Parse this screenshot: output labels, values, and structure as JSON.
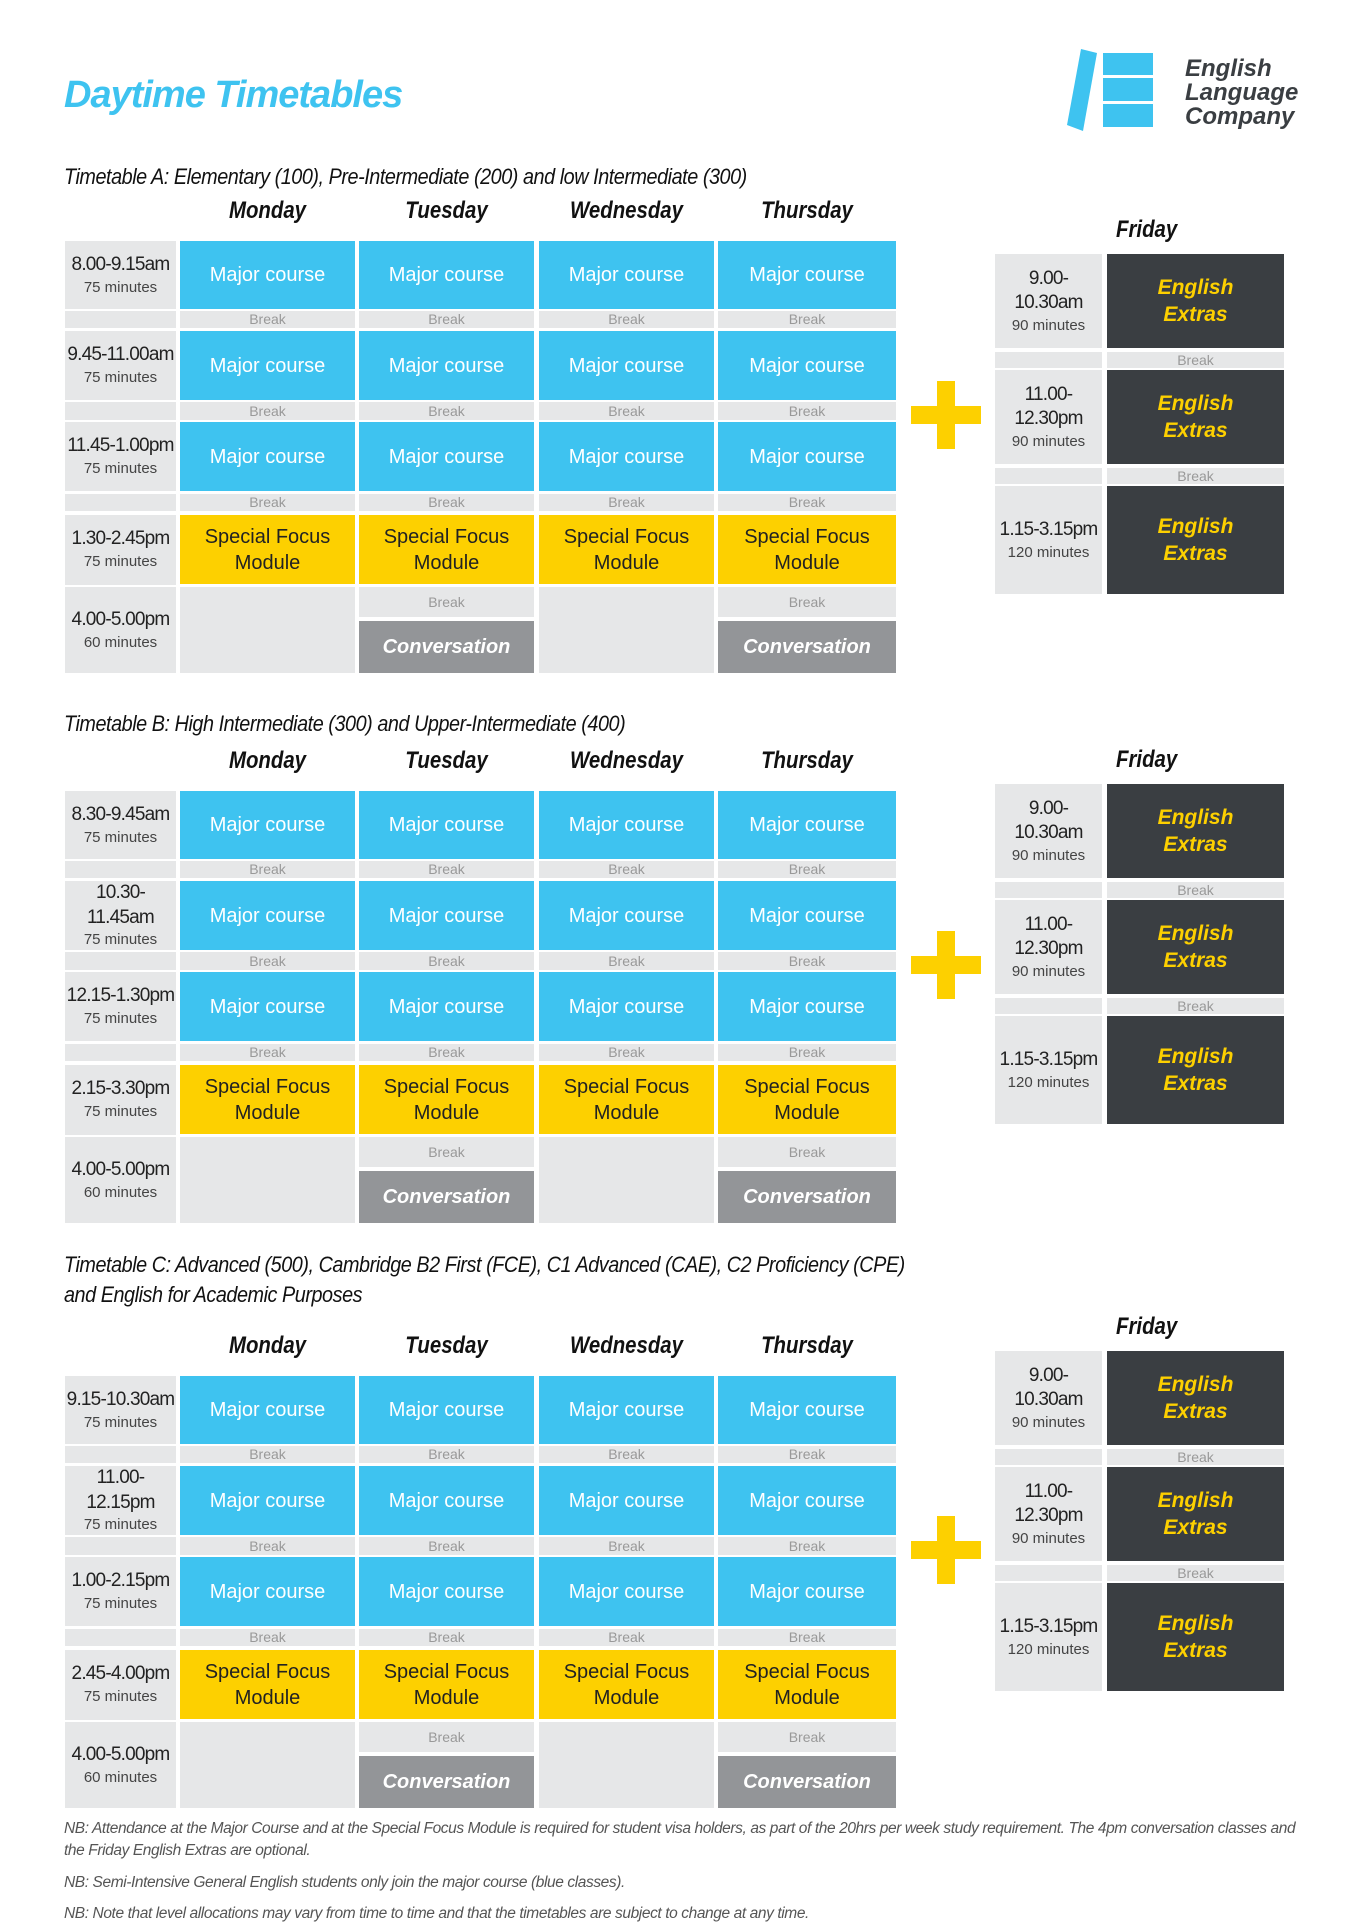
{
  "title": "Daytime Timetables",
  "logo": {
    "lines": [
      "English",
      "Language",
      "Company"
    ],
    "color": "#3ec3f0"
  },
  "colors": {
    "major": "#3ec3f0",
    "special": "#fdd000",
    "extras": "#3a3e42",
    "conversation": "#939598",
    "break": "#e6e7e8"
  },
  "days": [
    "Monday",
    "Tuesday",
    "Wednesday",
    "Thursday"
  ],
  "friday_label": "Friday",
  "labels": {
    "major": "Major course",
    "special": [
      "Special Focus",
      "Module"
    ],
    "conversation": "Conversation",
    "break": "Break",
    "extras": [
      "English",
      "Extras"
    ]
  },
  "timetables": [
    {
      "heading": [
        "Timetable A: Elementary (100), Pre-Intermediate (200) and low Intermediate (300)"
      ],
      "slots": [
        {
          "time": "8.00-9.15am",
          "duration": "75 minutes"
        },
        {
          "time": "9.45-11.00am",
          "duration": "75 minutes"
        },
        {
          "time": "11.45-1.00pm",
          "duration": "75 minutes"
        },
        {
          "time": "1.30-2.45pm",
          "duration": "75 minutes"
        },
        {
          "time": "4.00-5.00pm",
          "duration": "60 minutes"
        }
      ],
      "friday": [
        {
          "time": "9.00-10.30am",
          "duration": "90 minutes"
        },
        {
          "time": "11.00-12.30pm",
          "duration": "90 minutes"
        },
        {
          "time": "1.15-3.15pm",
          "duration": "120 minutes"
        }
      ]
    },
    {
      "heading": [
        "Timetable B: High Intermediate (300) and Upper-Intermediate (400)"
      ],
      "slots": [
        {
          "time": "8.30-9.45am",
          "duration": "75 minutes"
        },
        {
          "time": "10.30-11.45am",
          "duration": "75 minutes"
        },
        {
          "time": "12.15-1.30pm",
          "duration": "75 minutes"
        },
        {
          "time": "2.15-3.30pm",
          "duration": "75 minutes"
        },
        {
          "time": "4.00-5.00pm",
          "duration": "60 minutes"
        }
      ],
      "friday": [
        {
          "time": "9.00-10.30am",
          "duration": "90 minutes"
        },
        {
          "time": "11.00-12.30pm",
          "duration": "90 minutes"
        },
        {
          "time": "1.15-3.15pm",
          "duration": "120 minutes"
        }
      ]
    },
    {
      "heading": [
        "Timetable C: Advanced (500), Cambridge B2 First (FCE), C1 Advanced (CAE), C2 Proficiency (CPE)",
        "and English for Academic Purposes"
      ],
      "slots": [
        {
          "time": "9.15-10.30am",
          "duration": "75 minutes"
        },
        {
          "time": "11.00-12.15pm",
          "duration": "75 minutes"
        },
        {
          "time": "1.00-2.15pm",
          "duration": "75 minutes"
        },
        {
          "time": "2.45-4.00pm",
          "duration": "75 minutes"
        },
        {
          "time": "4.00-5.00pm",
          "duration": "60 minutes"
        }
      ],
      "friday": [
        {
          "time": "9.00-10.30am",
          "duration": "90 minutes"
        },
        {
          "time": "11.00-12.30pm",
          "duration": "90 minutes"
        },
        {
          "time": "1.15-3.15pm",
          "duration": "120 minutes"
        }
      ]
    }
  ],
  "conversation_days": [
    1,
    3
  ],
  "notes": [
    "NB: Attendance at the Major Course and at the Special Focus Module is required for student visa holders, as part of the 20hrs per week study requirement. The 4pm conversation classes and the Friday English Extras are optional.",
    "NB: Semi-Intensive General English students only join the major course (blue classes).",
    "NB: Note that level allocations may vary from time to time and that the timetables are subject to change at any time."
  ]
}
